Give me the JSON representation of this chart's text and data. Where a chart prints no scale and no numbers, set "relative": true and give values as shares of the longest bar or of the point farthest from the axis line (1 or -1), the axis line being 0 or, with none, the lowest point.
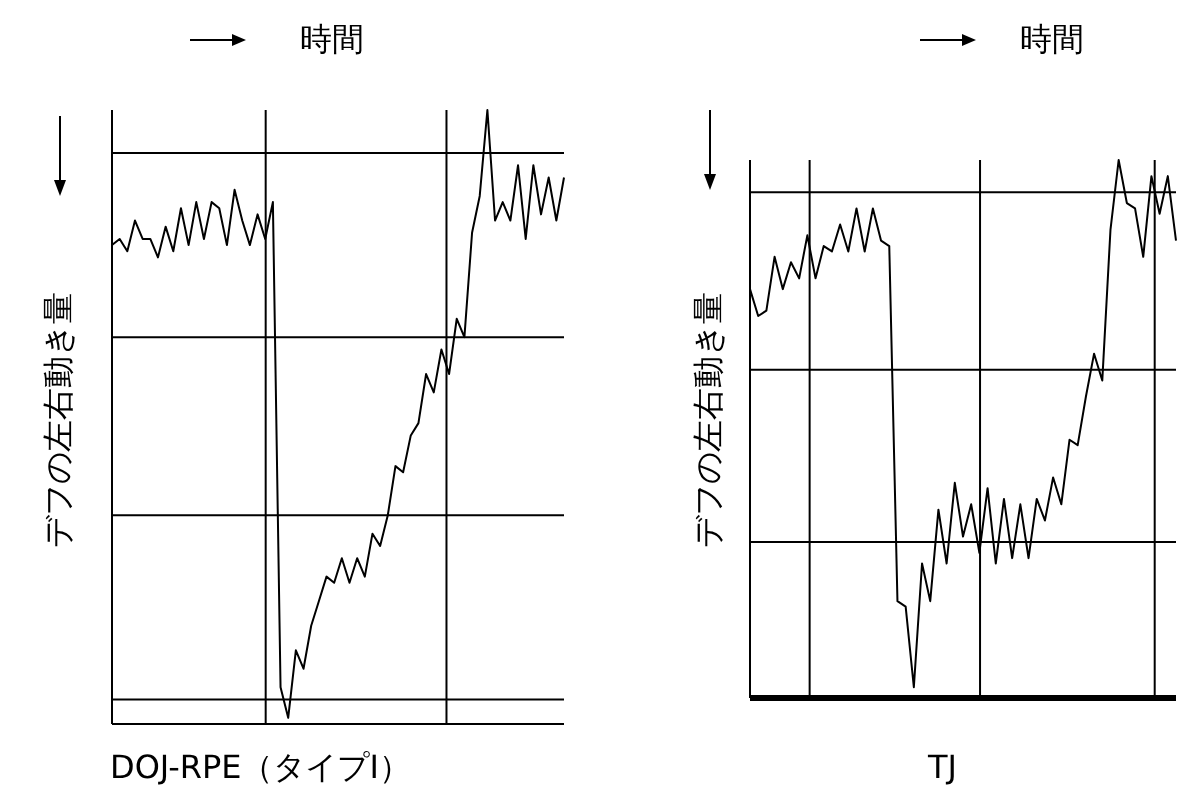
{
  "chart_data": [
    {
      "type": "line",
      "relative": true,
      "title": "DOJ-RPE（タイプⅠ）",
      "xlabel": "時間",
      "ylabel": "デフの左右動き量",
      "grid": true,
      "marker": "none",
      "color": "#000000",
      "categories": [
        null,
        null,
        null,
        null,
        null,
        null,
        null,
        null,
        null,
        null,
        null,
        null,
        null,
        null,
        null,
        null,
        null,
        null,
        null,
        null,
        null,
        null,
        null,
        null,
        null,
        null,
        null,
        null,
        null,
        null,
        null,
        null,
        null,
        null,
        null,
        null,
        null,
        null,
        null,
        null,
        null,
        null,
        null,
        null,
        null,
        null,
        null,
        null,
        null,
        null,
        null,
        null,
        null,
        null,
        null,
        null,
        null,
        null,
        null,
        null
      ],
      "values": [
        0.78,
        0.79,
        0.77,
        0.82,
        0.79,
        0.79,
        0.76,
        0.81,
        0.77,
        0.84,
        0.78,
        0.85,
        0.79,
        0.85,
        0.84,
        0.78,
        0.87,
        0.82,
        0.78,
        0.83,
        0.79,
        0.85,
        0.06,
        0.01,
        0.12,
        0.09,
        0.16,
        0.2,
        0.24,
        0.23,
        0.27,
        0.23,
        0.27,
        0.24,
        0.31,
        0.29,
        0.34,
        0.42,
        0.41,
        0.47,
        0.49,
        0.57,
        0.54,
        0.61,
        0.57,
        0.66,
        0.63,
        0.8,
        0.86,
        1,
        0.82,
        0.85,
        0.82,
        0.91,
        0.79,
        0.91,
        0.83,
        0.89,
        0.82,
        0.89
      ]
    },
    {
      "type": "line",
      "relative": true,
      "title": "TJ",
      "xlabel": "時間",
      "ylabel": "デフの左右動き量",
      "grid": true,
      "marker": "none",
      "color": "#000000",
      "categories": [
        null,
        null,
        null,
        null,
        null,
        null,
        null,
        null,
        null,
        null,
        null,
        null,
        null,
        null,
        null,
        null,
        null,
        null,
        null,
        null,
        null,
        null,
        null,
        null,
        null,
        null,
        null,
        null,
        null,
        null,
        null,
        null,
        null,
        null,
        null,
        null,
        null,
        null,
        null,
        null,
        null,
        null,
        null,
        null,
        null,
        null,
        null,
        null,
        null,
        null,
        null,
        null,
        null
      ],
      "values": [
        0.76,
        0.71,
        0.72,
        0.82,
        0.76,
        0.81,
        0.78,
        0.86,
        0.78,
        0.84,
        0.83,
        0.88,
        0.83,
        0.91,
        0.83,
        0.91,
        0.85,
        0.84,
        0.18,
        0.17,
        0.02,
        0.25,
        0.18,
        0.35,
        0.25,
        0.4,
        0.3,
        0.36,
        0.27,
        0.39,
        0.25,
        0.37,
        0.26,
        0.36,
        0.26,
        0.37,
        0.33,
        0.41,
        0.36,
        0.48,
        0.47,
        0.56,
        0.64,
        0.59,
        0.87,
        1,
        0.92,
        0.91,
        0.82,
        0.97,
        0.9,
        0.97,
        0.85
      ]
    }
  ]
}
